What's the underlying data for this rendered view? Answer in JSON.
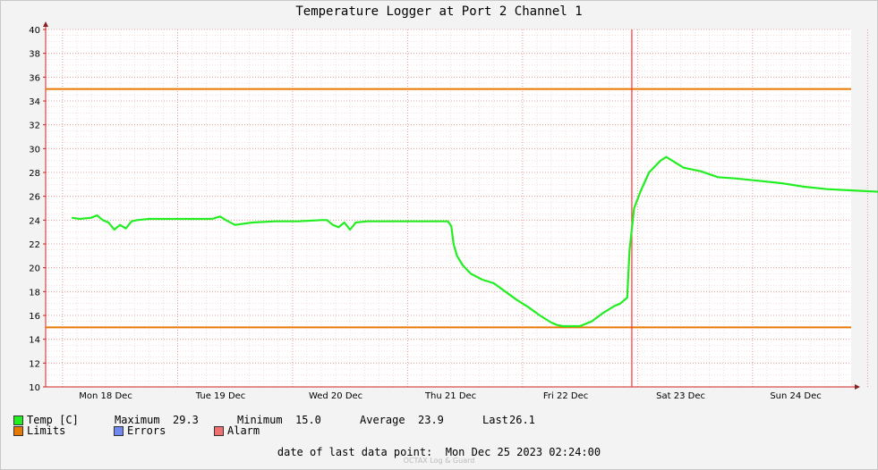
{
  "chart_data": {
    "type": "line",
    "title": "Temperature Logger at Port 2 Channel 1",
    "ylim": [
      10,
      40
    ],
    "y_ticks": [
      10,
      12,
      14,
      16,
      18,
      20,
      22,
      24,
      26,
      28,
      30,
      32,
      34,
      36,
      38,
      40
    ],
    "x_tick_labels": [
      "Mon 18 Dec",
      "Tue 19 Dec",
      "Wed 20 Dec",
      "Thu 21 Dec",
      "Fri 22 Dec",
      "Sat 23 Dec",
      "Sun 24 Dec"
    ],
    "grid": true,
    "limits": {
      "upper": 35,
      "lower": 15,
      "color": "#e87800"
    },
    "now_marker": {
      "day": 4.7,
      "color": "#ff3030"
    },
    "series": [
      {
        "name": "Temp [C]",
        "color": "#22ee22",
        "x_unit": "days since Mon 18 Dec 00:00",
        "points": [
          [
            -0.17,
            24.2
          ],
          [
            -0.1,
            24.1
          ],
          [
            0.0,
            24.2
          ],
          [
            0.05,
            24.4
          ],
          [
            0.1,
            24.0
          ],
          [
            0.15,
            23.8
          ],
          [
            0.2,
            23.2
          ],
          [
            0.25,
            23.6
          ],
          [
            0.3,
            23.3
          ],
          [
            0.35,
            23.9
          ],
          [
            0.4,
            24.0
          ],
          [
            0.5,
            24.1
          ],
          [
            0.7,
            24.1
          ],
          [
            0.9,
            24.1
          ],
          [
            1.05,
            24.1
          ],
          [
            1.12,
            24.3
          ],
          [
            1.17,
            24.0
          ],
          [
            1.25,
            23.6
          ],
          [
            1.4,
            23.8
          ],
          [
            1.6,
            23.9
          ],
          [
            1.8,
            23.9
          ],
          [
            2.0,
            24.0
          ],
          [
            2.05,
            24.0
          ],
          [
            2.1,
            23.6
          ],
          [
            2.15,
            23.4
          ],
          [
            2.2,
            23.8
          ],
          [
            2.25,
            23.2
          ],
          [
            2.3,
            23.8
          ],
          [
            2.4,
            23.9
          ],
          [
            2.6,
            23.9
          ],
          [
            2.8,
            23.9
          ],
          [
            3.0,
            23.9
          ],
          [
            3.1,
            23.9
          ],
          [
            3.13,
            23.5
          ],
          [
            3.15,
            22.0
          ],
          [
            3.18,
            21.0
          ],
          [
            3.23,
            20.2
          ],
          [
            3.3,
            19.5
          ],
          [
            3.4,
            19.0
          ],
          [
            3.5,
            18.7
          ],
          [
            3.6,
            18.0
          ],
          [
            3.7,
            17.3
          ],
          [
            3.8,
            16.7
          ],
          [
            3.9,
            16.0
          ],
          [
            4.0,
            15.4
          ],
          [
            4.05,
            15.2
          ],
          [
            4.1,
            15.1
          ],
          [
            4.2,
            15.1
          ],
          [
            4.25,
            15.1
          ],
          [
            4.35,
            15.5
          ],
          [
            4.45,
            16.2
          ],
          [
            4.55,
            16.8
          ],
          [
            4.6,
            17.0
          ],
          [
            4.66,
            17.5
          ],
          [
            4.68,
            21.5
          ],
          [
            4.72,
            25.0
          ],
          [
            4.78,
            26.5
          ],
          [
            4.85,
            28.0
          ],
          [
            4.95,
            29.0
          ],
          [
            5.0,
            29.3
          ],
          [
            5.05,
            29.0
          ],
          [
            5.15,
            28.4
          ],
          [
            5.3,
            28.1
          ],
          [
            5.45,
            27.6
          ],
          [
            5.6,
            27.5
          ],
          [
            5.8,
            27.3
          ],
          [
            6.0,
            27.1
          ],
          [
            6.2,
            26.8
          ],
          [
            6.4,
            26.6
          ],
          [
            6.6,
            26.5
          ],
          [
            6.8,
            26.4
          ],
          [
            7.0,
            26.3
          ],
          [
            7.2,
            26.2
          ],
          [
            7.4,
            26.1
          ],
          [
            7.6,
            26.1
          ]
        ]
      }
    ],
    "legend": {
      "temp": "Temp [C]",
      "stats": [
        {
          "label": "Maximum",
          "value": "29.3"
        },
        {
          "label": "Minimum",
          "value": "15.0"
        },
        {
          "label": "Average",
          "value": "23.9"
        },
        {
          "label": "Last",
          "value": "26.1"
        }
      ],
      "limits": "Limits",
      "errors": "Errors",
      "alarm": "Alarm",
      "colors": {
        "temp": "#22ee22",
        "limits": "#e87800",
        "errors": "#7088f0",
        "alarm": "#f07070"
      }
    },
    "footer": "date of last data point:  Mon Dec 25 2023 02:24:00",
    "watermark": "OCTAX Log & Guard"
  }
}
